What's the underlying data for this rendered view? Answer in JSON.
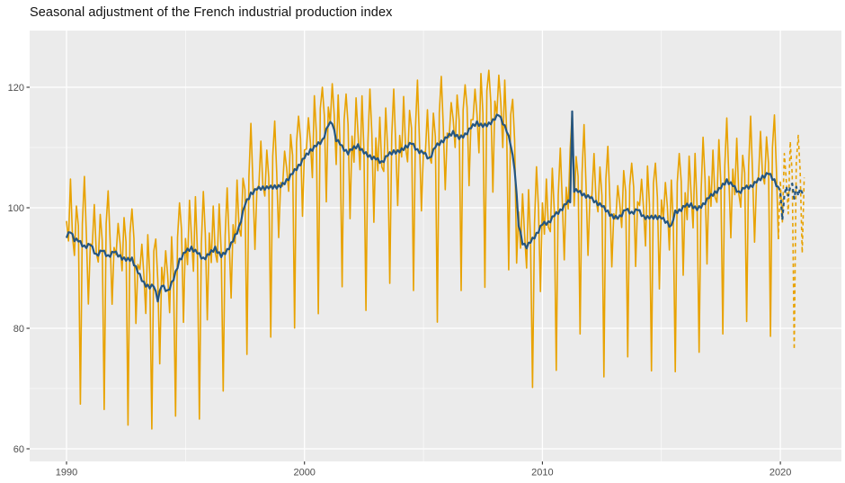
{
  "title": "Seasonal adjustment of the French industrial production index",
  "chart_data": {
    "type": "line",
    "title": "Seasonal adjustment of the French industrial production index",
    "x_ticks": [
      "1990",
      "2000",
      "2010",
      "2020"
    ],
    "y_ticks": [
      "60",
      "80",
      "100",
      "120"
    ],
    "x_tick_years": [
      1990,
      2000,
      2010,
      2020
    ],
    "y_tick_values": [
      60,
      80,
      100,
      120
    ],
    "minor_x_years": [
      1995,
      2005,
      2015
    ],
    "minor_y_values": [
      70,
      90,
      110
    ],
    "x_range_years": [
      1988.45,
      2022.55
    ],
    "y_range_values": [
      57.8,
      129.4
    ],
    "panel_background": "#EBEBEB",
    "gridline_color": "#FFFFFF",
    "tick_color": "#333333",
    "tick_label_color": "#4D4D4D",
    "legend": "none",
    "series": [
      {
        "id": "unadjusted_index",
        "color": "#E8A200",
        "width": 1.6,
        "derived_from": "seasonally_adjusted_index",
        "seasonal_offsets": [
          2,
          -0.5,
          7,
          1,
          -3,
          7.5,
          1.5,
          -25,
          4,
          10,
          3,
          -10
        ],
        "noise_cycle": [
          0.8,
          -0.6,
          1.6,
          -1.2,
          0.3,
          -1.8,
          1.1
        ],
        "august_depth_cycle": [
          -2.5,
          0.8,
          -1.2,
          2.0,
          0.2
        ]
      },
      {
        "id": "seasonally_adjusted_index",
        "color": "#245580",
        "width": 2.2,
        "wiggle_cycle": [
          0,
          0.35,
          -0.3,
          0.15,
          -0.35,
          0.3
        ],
        "anchors": [
          [
            1990.0,
            95.0
          ],
          [
            1990.17,
            96.2
          ],
          [
            1990.33,
            94.8
          ],
          [
            1990.5,
            94.4
          ],
          [
            1990.75,
            93.6
          ],
          [
            1991.0,
            93.8
          ],
          [
            1991.25,
            92.2
          ],
          [
            1991.5,
            92.8
          ],
          [
            1991.75,
            92.0
          ],
          [
            1992.0,
            92.6
          ],
          [
            1992.25,
            92.0
          ],
          [
            1992.5,
            91.2
          ],
          [
            1992.75,
            91.6
          ],
          [
            1993.0,
            89.2
          ],
          [
            1993.25,
            87.6
          ],
          [
            1993.5,
            86.6
          ],
          [
            1993.667,
            87.2
          ],
          [
            1993.833,
            84.8
          ],
          [
            1994.0,
            87.0
          ],
          [
            1994.25,
            86.2
          ],
          [
            1994.5,
            88.0
          ],
          [
            1994.75,
            91.4
          ],
          [
            1995.0,
            92.6
          ],
          [
            1995.25,
            93.4
          ],
          [
            1995.5,
            92.4
          ],
          [
            1995.75,
            91.6
          ],
          [
            1996.0,
            92.2
          ],
          [
            1996.25,
            93.4
          ],
          [
            1996.5,
            91.8
          ],
          [
            1996.75,
            93.0
          ],
          [
            1997.0,
            94.4
          ],
          [
            1997.25,
            96.8
          ],
          [
            1997.5,
            100.4
          ],
          [
            1997.75,
            102.4
          ],
          [
            1998.0,
            103.0
          ],
          [
            1998.25,
            103.4
          ],
          [
            1998.5,
            103.2
          ],
          [
            1998.75,
            103.6
          ],
          [
            1999.0,
            103.4
          ],
          [
            1999.25,
            104.6
          ],
          [
            1999.5,
            105.6
          ],
          [
            1999.75,
            107.0
          ],
          [
            2000.0,
            108.2
          ],
          [
            2000.25,
            109.6
          ],
          [
            2000.5,
            110.2
          ],
          [
            2000.75,
            111.2
          ],
          [
            2001.0,
            113.6
          ],
          [
            2001.167,
            114.2
          ],
          [
            2001.333,
            111.4
          ],
          [
            2001.583,
            110.0
          ],
          [
            2001.833,
            109.2
          ],
          [
            2002.0,
            109.6
          ],
          [
            2002.25,
            110.4
          ],
          [
            2002.5,
            109.0
          ],
          [
            2002.75,
            108.6
          ],
          [
            2003.0,
            108.0
          ],
          [
            2003.25,
            107.6
          ],
          [
            2003.5,
            108.6
          ],
          [
            2003.75,
            109.4
          ],
          [
            2004.0,
            109.2
          ],
          [
            2004.25,
            110.2
          ],
          [
            2004.5,
            110.6
          ],
          [
            2004.75,
            109.6
          ],
          [
            2005.0,
            109.0
          ],
          [
            2005.25,
            108.2
          ],
          [
            2005.5,
            110.0
          ],
          [
            2005.75,
            111.0
          ],
          [
            2006.0,
            111.6
          ],
          [
            2006.25,
            112.6
          ],
          [
            2006.5,
            111.4
          ],
          [
            2006.75,
            112.2
          ],
          [
            2007.0,
            113.2
          ],
          [
            2007.25,
            114.2
          ],
          [
            2007.5,
            113.4
          ],
          [
            2007.75,
            114.0
          ],
          [
            2008.0,
            114.6
          ],
          [
            2008.167,
            115.6
          ],
          [
            2008.333,
            114.2
          ],
          [
            2008.5,
            112.6
          ],
          [
            2008.667,
            110.6
          ],
          [
            2008.833,
            106.6
          ],
          [
            2008.917,
            102.0
          ],
          [
            2009.0,
            97.0
          ],
          [
            2009.167,
            94.2
          ],
          [
            2009.333,
            93.6
          ],
          [
            2009.5,
            94.2
          ],
          [
            2009.667,
            95.2
          ],
          [
            2009.833,
            96.2
          ],
          [
            2010.0,
            97.2
          ],
          [
            2010.25,
            97.6
          ],
          [
            2010.5,
            98.6
          ],
          [
            2010.75,
            99.6
          ],
          [
            2011.0,
            100.6
          ],
          [
            2011.167,
            101.2
          ],
          [
            2011.25,
            116.0
          ],
          [
            2011.333,
            103.0
          ],
          [
            2011.5,
            102.6
          ],
          [
            2011.75,
            102.2
          ],
          [
            2012.0,
            101.6
          ],
          [
            2012.25,
            101.0
          ],
          [
            2012.5,
            100.2
          ],
          [
            2012.75,
            99.4
          ],
          [
            2013.0,
            98.2
          ],
          [
            2013.25,
            98.6
          ],
          [
            2013.5,
            99.6
          ],
          [
            2013.75,
            99.2
          ],
          [
            2014.0,
            99.6
          ],
          [
            2014.25,
            98.6
          ],
          [
            2014.5,
            98.2
          ],
          [
            2014.75,
            98.6
          ],
          [
            2015.0,
            98.2
          ],
          [
            2015.25,
            97.6
          ],
          [
            2015.417,
            96.8
          ],
          [
            2015.583,
            99.2
          ],
          [
            2015.75,
            99.6
          ],
          [
            2016.0,
            100.2
          ],
          [
            2016.25,
            100.6
          ],
          [
            2016.5,
            99.6
          ],
          [
            2016.75,
            100.6
          ],
          [
            2017.0,
            101.6
          ],
          [
            2017.25,
            102.6
          ],
          [
            2017.5,
            103.2
          ],
          [
            2017.75,
            104.6
          ],
          [
            2018.0,
            103.6
          ],
          [
            2018.25,
            102.6
          ],
          [
            2018.5,
            103.2
          ],
          [
            2018.75,
            103.6
          ],
          [
            2019.0,
            104.2
          ],
          [
            2019.25,
            105.2
          ],
          [
            2019.5,
            105.6
          ],
          [
            2019.75,
            104.6
          ],
          [
            2019.917,
            103.2
          ]
        ]
      }
    ],
    "observed_months": {
      "start_year": 1990,
      "count": 360
    },
    "forecast": {
      "style": "dashed",
      "dash": [
        4,
        3.5
      ],
      "sa_points": [
        [
          2020.0,
          102.5
        ],
        [
          2020.083,
          98.0
        ],
        [
          2020.167,
          102.0
        ],
        [
          2020.25,
          103.5
        ],
        [
          2020.333,
          102.0
        ],
        [
          2020.417,
          103.5
        ],
        [
          2020.5,
          104.0
        ],
        [
          2020.583,
          101.5
        ],
        [
          2020.667,
          103.5
        ],
        [
          2020.75,
          102.0
        ],
        [
          2020.833,
          103.2
        ],
        [
          2020.917,
          102.5
        ],
        [
          2021.0,
          103.0
        ]
      ]
    }
  }
}
